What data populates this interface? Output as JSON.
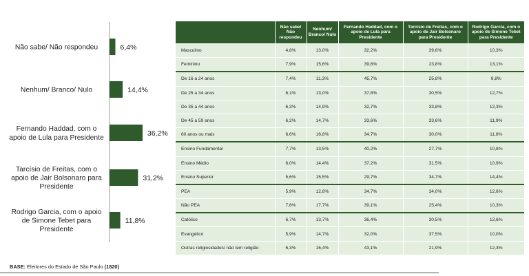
{
  "chart_data": {
    "type": "bar",
    "categories": [
      [
        "Não sabe/ Não respondeu"
      ],
      [
        "Nenhum/ Branco/ Nulo"
      ],
      [
        "Fernando Haddad, com o",
        "apoio de Lula para Presidente"
      ],
      [
        "Tarcísio de Freitas, com o",
        "apoio de Jair Bolsonaro para",
        "Presidente"
      ],
      [
        "Rodrigo Garcia, com o apoio",
        "de Simone Tebet para",
        "Presidente"
      ]
    ],
    "values": [
      6.4,
      14.4,
      36.2,
      31.2,
      11.8
    ],
    "value_labels": [
      "6,4%",
      "14,4%",
      "36,2%",
      "31,2%",
      "11,8%"
    ],
    "orientation": "horizontal",
    "bar_color": "#2e5a2c"
  },
  "table": {
    "headers": [
      "",
      "Não sabe/ Não respondeu",
      "Nenhum/ Branco/ Nulo",
      "Fernando Haddad, com o apoio de Lula para Presidente",
      "Tarcísio de Freitas, com o apoio de Jair Bolsonaro para Presidente",
      "Rodrigo Garcia, com o apoio de Simone Tebet para Presidente"
    ],
    "groups": [
      [
        [
          "Masculino",
          "4,8%",
          "13,0%",
          "32,2%",
          "39,6%",
          "10,3%"
        ],
        [
          "Feminino",
          "7,9%",
          "15,6%",
          "39,6%",
          "23,8%",
          "13,1%"
        ]
      ],
      [
        [
          "De 16 a 24 anos",
          "7,4%",
          "11,3%",
          "45,7%",
          "25,8%",
          "9,8%"
        ],
        [
          "De 25 a 34 anos",
          "6,1%",
          "13,0%",
          "37,8%",
          "30,5%",
          "12,7%"
        ],
        [
          "De 35 a 44 anos",
          "6,3%",
          "14,9%",
          "32,7%",
          "33,8%",
          "12,3%"
        ],
        [
          "De 45 a 59 anos",
          "6,2%",
          "14,7%",
          "33,6%",
          "33,6%",
          "11,9%"
        ],
        [
          "60 anos ou mais",
          "6,6%",
          "16,8%",
          "34,7%",
          "30,0%",
          "11,8%"
        ]
      ],
      [
        [
          "Ensino Fundamental",
          "7,7%",
          "13,5%",
          "40,2%",
          "27,7%",
          "10,8%"
        ],
        [
          "Ensino Médio",
          "6,0%",
          "14,4%",
          "37,2%",
          "31,5%",
          "10,9%"
        ],
        [
          "Ensino Superior",
          "5,6%",
          "15,5%",
          "29,7%",
          "34,7%",
          "14,4%"
        ]
      ],
      [
        [
          "PEA",
          "5,9%",
          "12,8%",
          "34,7%",
          "34,0%",
          "12,6%"
        ],
        [
          "Não PEA",
          "7,6%",
          "17,7%",
          "39,1%",
          "25,4%",
          "10,3%"
        ]
      ],
      [
        [
          "Católico",
          "6,7%",
          "13,7%",
          "36,4%",
          "30,5%",
          "12,6%"
        ],
        [
          "Evangélico",
          "5,9%",
          "14,7%",
          "32,0%",
          "37,5%",
          "10,0%"
        ],
        [
          "Outras religiosidades/ não tem religião",
          "6,3%",
          "16,4%",
          "43,1%",
          "21,9%",
          "12,3%"
        ]
      ]
    ]
  },
  "footer": {
    "base_label": "BASE:",
    "base_text": " Eleitores do Estado de São Paulo ",
    "base_count": "(1820)"
  }
}
